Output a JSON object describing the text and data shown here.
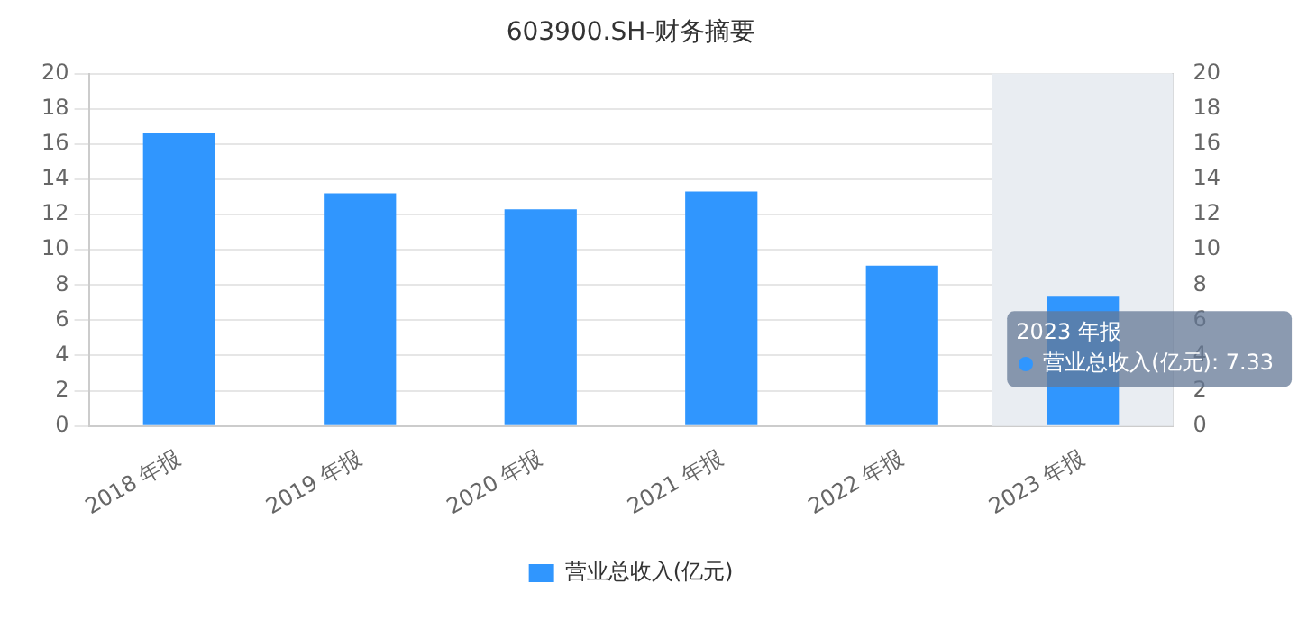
{
  "chart_data": {
    "type": "bar",
    "title": "603900.SH-财务摘要",
    "categories": [
      "2018 年报",
      "2019 年报",
      "2020 年报",
      "2021 年报",
      "2022 年报",
      "2023 年报"
    ],
    "series": [
      {
        "name": "营业总收入(亿元)",
        "color": "#3096fe",
        "values": [
          16.6,
          13.2,
          12.3,
          13.3,
          9.1,
          7.33
        ]
      }
    ],
    "ylim": [
      0,
      20
    ],
    "yticks": [
      0,
      2,
      4,
      6,
      8,
      10,
      12,
      14,
      16,
      18,
      20
    ],
    "y2lim": [
      0,
      20
    ],
    "y2ticks": [
      0,
      2,
      4,
      6,
      8,
      10,
      12,
      14,
      16,
      18,
      20
    ],
    "grid": "y",
    "legend": "bottom",
    "bands": [
      {
        "axis": "x",
        "from": "2023 年报",
        "to": "2023 年报",
        "color": "#e9edf2"
      }
    ],
    "annotations": [
      "2023 年报",
      {
        "text": "营业总收入(亿元): 7.33",
        "x": "2023 年报",
        "y": 7.33
      }
    ]
  }
}
